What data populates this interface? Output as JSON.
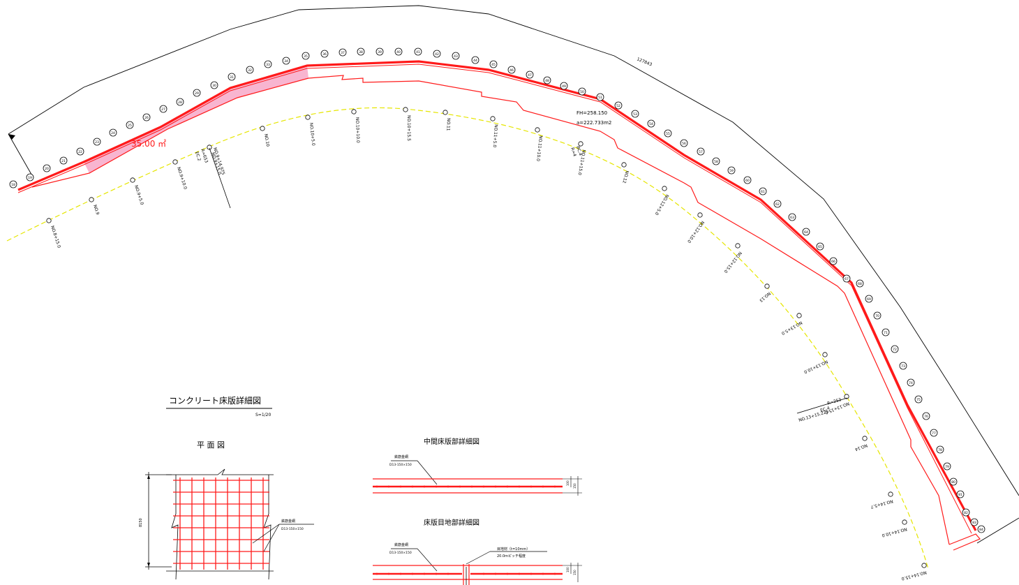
{
  "markers": {
    "top_row": [
      "18",
      "19",
      "20",
      "21",
      "22",
      "23",
      "24",
      "25",
      "26",
      "27",
      "28",
      "29",
      "30",
      "31",
      "32",
      "33",
      "34",
      "35",
      "36",
      "37",
      "38",
      "39",
      "40",
      "41",
      "42",
      "43",
      "44",
      "45",
      "46",
      "47",
      "48",
      "49",
      "50",
      "51",
      "52",
      "53",
      "54",
      "55",
      "56",
      "57",
      "58",
      "59",
      "60",
      "61",
      "62",
      "63",
      "64",
      "65",
      "66",
      "67",
      "68",
      "69",
      "70",
      "71",
      "72",
      "73",
      "74",
      "75",
      "76",
      "77",
      "78",
      "79",
      "80",
      "81",
      "82",
      "83",
      "84"
    ]
  },
  "area_label": "35.00 ㎡",
  "fh_label": "FH=258.150",
  "a_label": "a=222.733m2",
  "boundary_label": "127843",
  "stations": [
    "NO.8+15.0",
    "NO.9",
    "NO.9+5.0",
    "NO.9+10.0",
    "NO.9+15.0",
    "NO.10",
    "NO.10+5.0",
    "NO.10+10.0",
    "NO.10+15.5",
    "NO.11",
    "NO.11+5.0",
    "NO.11+10.0",
    "NO.11+15.0",
    "NO.12",
    "NO.12+5.0",
    "NO.12+10.0",
    "NO.12+15.0",
    "NO.13",
    "NO.13+5.0",
    "NO.13+10.0",
    "NO.13+15.0",
    "NO.14",
    "NO.14+5.7",
    "NO.14+10.0",
    "NO.14+15.0"
  ],
  "curve_points": {
    "left": [
      "R=653",
      "EC.2",
      "NO.9+14.975"
    ],
    "mid": [
      "BC.4",
      "R=4"
    ],
    "right": [
      "R=253",
      "EC.4",
      "NO.13+15.225"
    ]
  },
  "detail": {
    "title": "コンクリート床版詳細図",
    "scale": "S=1/20",
    "plan_title": "平 面 図",
    "plan_dim": "8150",
    "rebar_label": "鉄筋金網",
    "rebar_spec": "D13-150×150",
    "middle_title": "中間床版部詳細図",
    "middle_dims": [
      "100",
      "150"
    ],
    "joint_title": "床版目地部詳細図",
    "joint_material": "目地材（t=10mm）",
    "joint_pitch": "20.0mピッチ程度"
  }
}
